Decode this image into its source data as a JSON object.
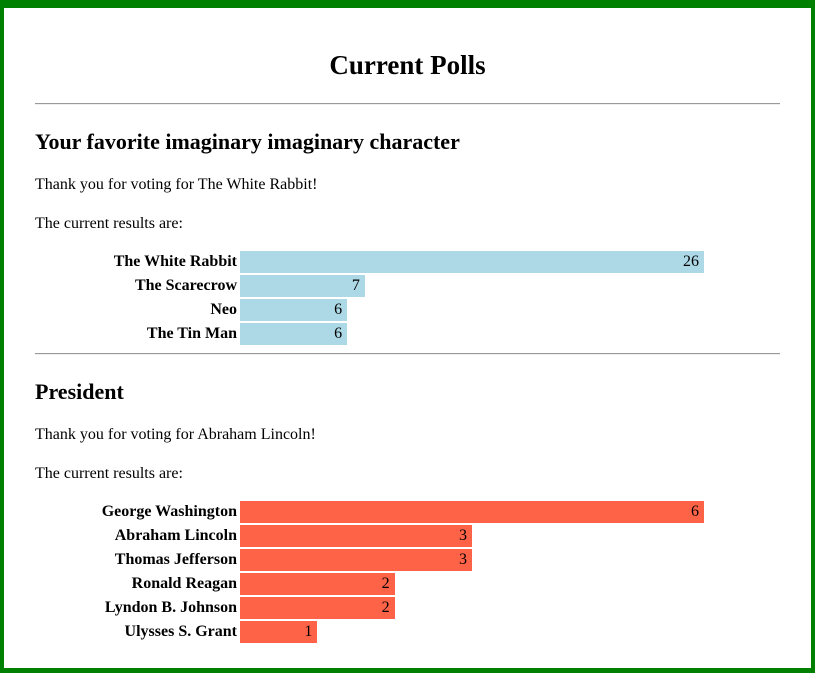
{
  "page": {
    "title": "Current Polls",
    "border_color": "#008000",
    "background_color": "#ffffff"
  },
  "polls": [
    {
      "heading": "Your favorite imaginary imaginary character",
      "thanks": "Thank you for voting for The White Rabbit!",
      "results_label": "The current results are:"
    },
    {
      "heading": "President",
      "thanks": "Thank you for voting for Abraham Lincoln!",
      "results_label": "The current results are:"
    }
  ],
  "chart_data": [
    {
      "type": "bar",
      "orientation": "horizontal",
      "title": "Your favorite imaginary imaginary character",
      "categories": [
        "The White Rabbit",
        "The Scarecrow",
        "Neo",
        "The Tin Man"
      ],
      "values": [
        26,
        7,
        6,
        6
      ],
      "bar_color": "#ADD8E6",
      "value_label_color": "#000000",
      "value_labels_shown": true,
      "axis_shown": false,
      "grid": false,
      "scale": "bars sized relative to max value (26 = full width)"
    },
    {
      "type": "bar",
      "orientation": "horizontal",
      "title": "President",
      "categories": [
        "George Washington",
        "Abraham Lincoln",
        "Thomas Jefferson",
        "Ronald Reagan",
        "Lyndon B. Johnson",
        "Ulysses S. Grant"
      ],
      "values": [
        6,
        3,
        3,
        2,
        2,
        1
      ],
      "bar_color": "#FF6347",
      "value_label_color": "#000000",
      "value_labels_shown": true,
      "axis_shown": false,
      "grid": false,
      "scale": "bars sized relative to max value (6 = full width)"
    }
  ]
}
